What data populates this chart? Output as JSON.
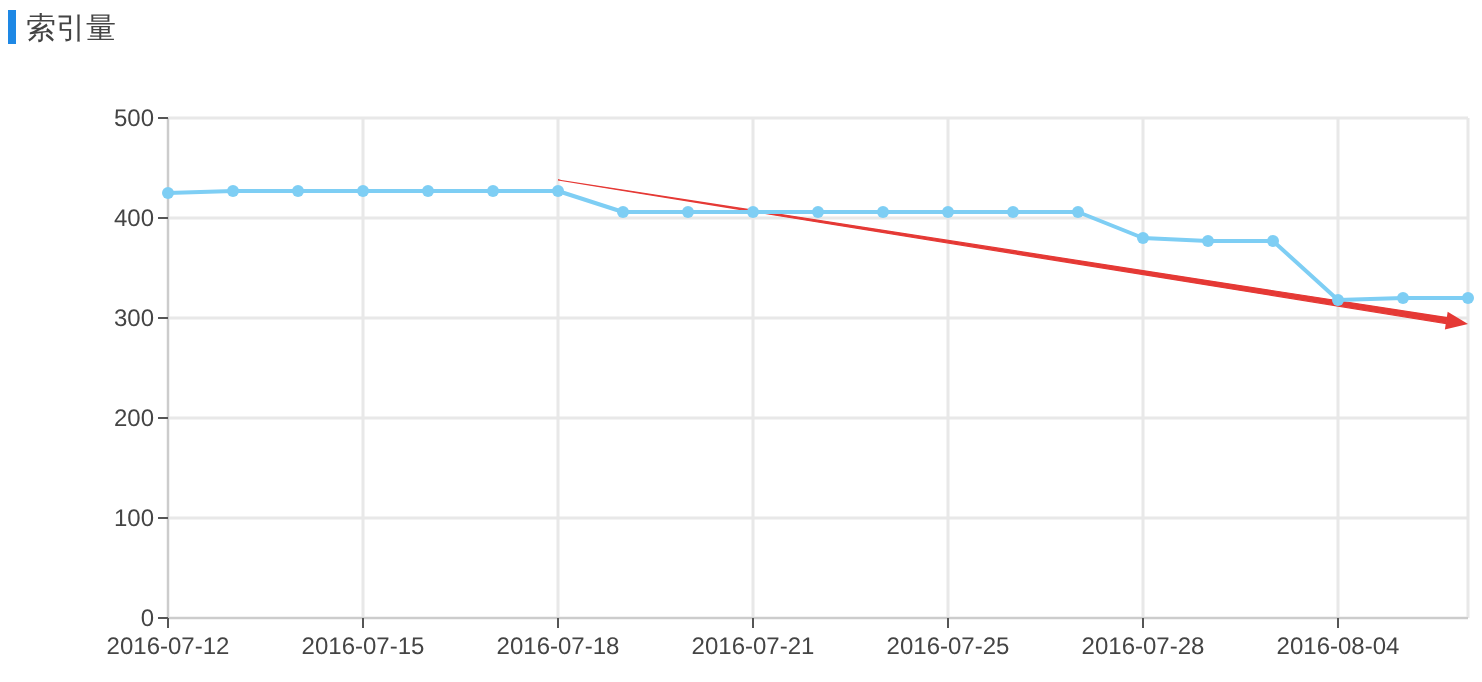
{
  "chart_data": {
    "type": "line",
    "title": "索引量",
    "categories": [
      "2016-07-12",
      null,
      null,
      "2016-07-15",
      null,
      null,
      "2016-07-18",
      null,
      null,
      "2016-07-21",
      null,
      null,
      "2016-07-25",
      null,
      null,
      "2016-07-28",
      null,
      null,
      "2016-08-04",
      null,
      null
    ],
    "series": [
      {
        "color": "#7ecef4",
        "values": [
          425,
          427,
          427,
          427,
          427,
          427,
          427,
          406,
          406,
          406,
          406,
          406,
          406,
          406,
          406,
          380,
          377,
          377,
          318,
          320,
          320
        ]
      }
    ],
    "ylim": [
      0,
      500
    ],
    "yticks": [
      0,
      100,
      200,
      300,
      400,
      500
    ],
    "grid": true,
    "marker": "circle",
    "line_style": "solid"
  }
}
